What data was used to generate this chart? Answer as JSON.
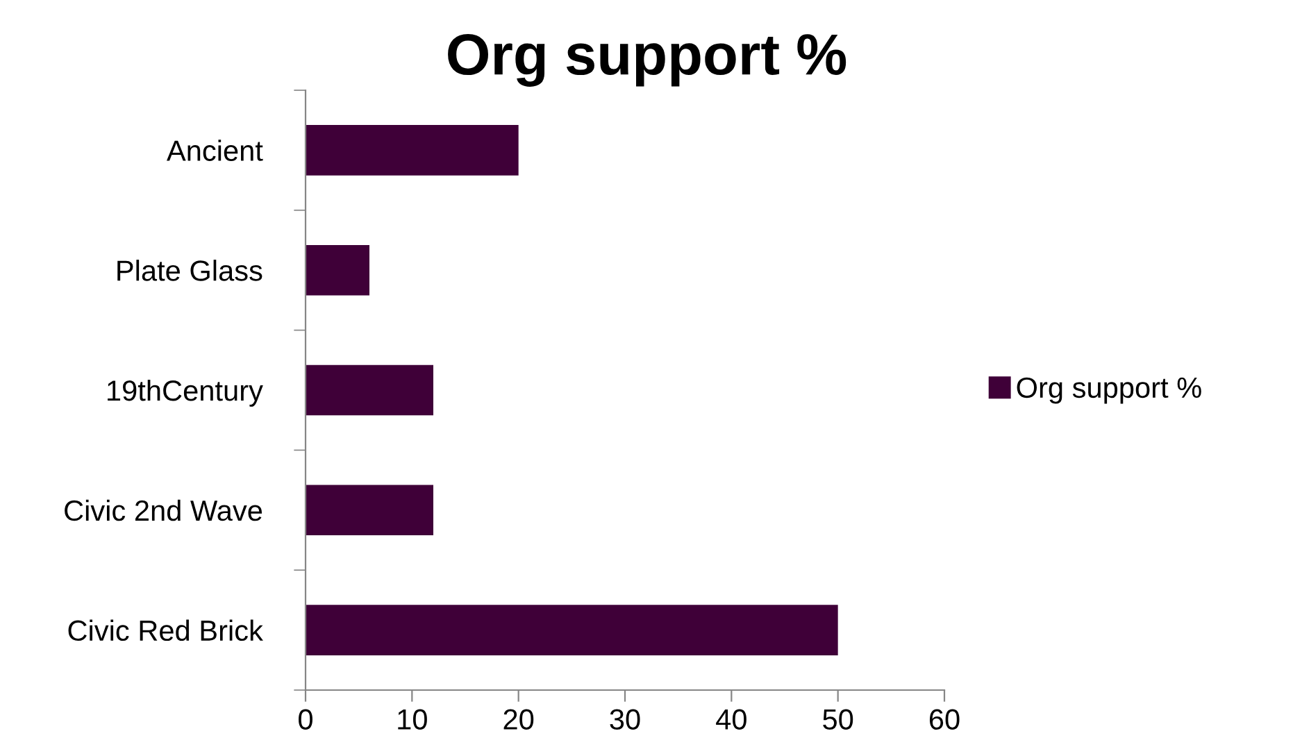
{
  "chart_data": {
    "type": "bar",
    "orientation": "horizontal",
    "title": "Org support %",
    "categories": [
      "Ancient",
      "Plate Glass",
      "19thCentury",
      "Civic 2nd Wave",
      "Civic Red Brick"
    ],
    "series": [
      {
        "name": "Org support %",
        "color": "#3f0038",
        "values": [
          20,
          6,
          12,
          12,
          50
        ]
      }
    ],
    "xlim": [
      0,
      60
    ],
    "xticks": [
      0,
      10,
      20,
      30,
      40,
      50,
      60
    ],
    "grid": false,
    "legend": "right"
  }
}
